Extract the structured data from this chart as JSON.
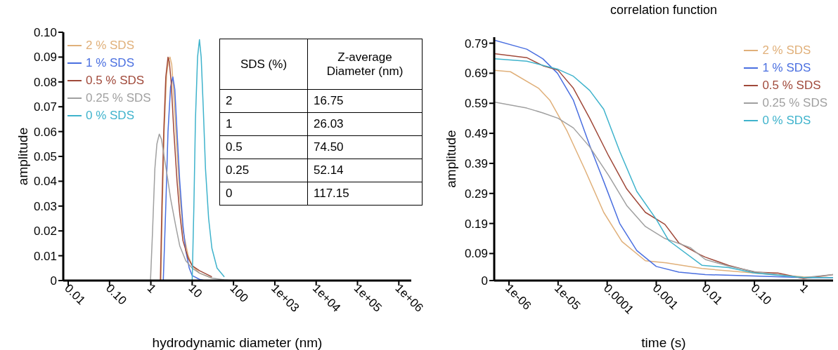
{
  "chart_data": [
    {
      "type": "line",
      "xlabel": "hydrodynamic diameter (nm)",
      "ylabel": "amplitude",
      "log": "x",
      "legend": "top left",
      "xlim": [
        0.0076,
        2000000
      ],
      "xticks": [
        0.01,
        {
          "value": 0.1,
          "label": "0.10"
        },
        1,
        10,
        100,
        {
          "value": 1000,
          "label": "1e+03"
        },
        {
          "value": 10000,
          "label": "1e+04"
        },
        {
          "value": 100000,
          "label": "1e+05"
        },
        {
          "value": 1000000,
          "label": "1e+06"
        }
      ],
      "ylim": [
        0,
        0.1
      ],
      "yticks": [
        0,
        0.01,
        0.02,
        0.03,
        0.04,
        0.05,
        0.06,
        0.07,
        0.08,
        0.09,
        {
          "value": 0.1,
          "label": "0.10"
        }
      ],
      "annotations": [
        "SDS (%)",
        "Z-average Diameter (nm)",
        "2",
        "16.75",
        "1",
        "26.03",
        "0.5",
        "74.50",
        "0.25",
        "52.14",
        "0",
        "117.15"
      ],
      "series": [
        {
          "name": "2 % SDS",
          "color": "#e0b07a",
          "x": [
            1.75,
            1.9,
            2.1,
            2.4,
            2.7,
            2.9,
            3.2,
            3.6,
            4.2,
            5,
            6,
            8,
            10,
            15,
            30
          ],
          "values": [
            0,
            0.03,
            0.06,
            0.083,
            0.089,
            0.09,
            0.087,
            0.075,
            0.055,
            0.035,
            0.02,
            0.01,
            0.006,
            0.003,
            0.001
          ]
        },
        {
          "name": "1 % SDS",
          "color": "#4a6fe0",
          "x": [
            2,
            2.3,
            2.6,
            3,
            3.4,
            3.8,
            4.3,
            5,
            6,
            7,
            8.5,
            10,
            15,
            20
          ],
          "values": [
            0,
            0.03,
            0.06,
            0.078,
            0.082,
            0.077,
            0.06,
            0.04,
            0.022,
            0.012,
            0.005,
            0.002,
            0.0005,
            0
          ]
        },
        {
          "name": "0.5 % SDS",
          "color": "#a0493a",
          "x": [
            1.7,
            1.85,
            2.05,
            2.3,
            2.6,
            2.8,
            3.1,
            3.6,
            4.3,
            5,
            6,
            8,
            10,
            15,
            30
          ],
          "values": [
            0,
            0.03,
            0.06,
            0.082,
            0.09,
            0.088,
            0.08,
            0.06,
            0.04,
            0.027,
            0.016,
            0.009,
            0.006,
            0.004,
            0.0015
          ]
        },
        {
          "name": "0.25 % SDS",
          "color": "#a0a0a0",
          "x": [
            0.98,
            1.1,
            1.25,
            1.4,
            1.6,
            1.8,
            2.1,
            2.5,
            3,
            4,
            5,
            7,
            10,
            15,
            30,
            60,
            100
          ],
          "values": [
            0,
            0.02,
            0.045,
            0.055,
            0.059,
            0.057,
            0.05,
            0.042,
            0.033,
            0.022,
            0.014,
            0.008,
            0.005,
            0.003,
            0.001,
            0.0003,
            0
          ]
        },
        {
          "name": "0 % SDS",
          "color": "#3fb3cc",
          "x": [
            10,
            11,
            12,
            13.5,
            15,
            16.5,
            18.5,
            21,
            25,
            30,
            40,
            60
          ],
          "values": [
            0,
            0.03,
            0.065,
            0.09,
            0.097,
            0.09,
            0.07,
            0.045,
            0.025,
            0.013,
            0.005,
            0.0015
          ]
        }
      ]
    },
    {
      "type": "line",
      "title": "correlation function",
      "xlabel": "time (s)",
      "ylabel": "amplitude",
      "log": "x",
      "legend": "top right",
      "xlim": [
        5e-07,
        4
      ],
      "xticks": [
        {
          "value": 1e-06,
          "label": "1e-06"
        },
        {
          "value": 1e-05,
          "label": "1e-05"
        },
        0.0001,
        0.001,
        0.01,
        {
          "value": 0.1,
          "label": "0.10"
        },
        1
      ],
      "ylim": [
        0,
        0.81
      ],
      "yticks": [
        0,
        0.09,
        0.19,
        0.29,
        0.39,
        0.49,
        0.59,
        0.69,
        0.79
      ],
      "series": [
        {
          "name": "2 % SDS",
          "color": "#e0b07a",
          "x": [
            5e-07,
            1.07e-06,
            4e-06,
            6.8e-06,
            1.5e-05,
            3.5e-05,
            8.5e-05,
            0.0002,
            0.0006,
            0.0016,
            0.0085,
            0.1,
            1,
            4
          ],
          "values": [
            0.7,
            0.695,
            0.64,
            0.6,
            0.5,
            0.37,
            0.227,
            0.13,
            0.066,
            0.059,
            0.04,
            0.025,
            0.012,
            0.01
          ]
        },
        {
          "name": "1 % SDS",
          "color": "#4a6fe0",
          "x": [
            5e-07,
            2.3e-06,
            4.9e-06,
            9.7e-06,
            2.05e-05,
            4.4e-05,
            8.5e-05,
            0.00018,
            0.0004,
            0.001,
            0.0029,
            0.01,
            0.1,
            1,
            4
          ],
          "values": [
            0.8,
            0.77,
            0.738,
            0.69,
            0.6,
            0.45,
            0.33,
            0.19,
            0.1,
            0.047,
            0.028,
            0.02,
            0.015,
            0.01,
            0.01
          ]
        },
        {
          "name": "0.5 % SDS",
          "color": "#a0493a",
          "x": [
            5e-07,
            2.3e-06,
            4.9e-06,
            1e-05,
            2.05e-05,
            4.4e-05,
            0.000107,
            0.00025,
            0.0006,
            0.0015,
            0.0029,
            0.0078,
            0.01,
            0.03,
            0.1,
            0.3,
            1,
            4
          ],
          "values": [
            0.755,
            0.742,
            0.715,
            0.7,
            0.64,
            0.54,
            0.415,
            0.305,
            0.227,
            0.187,
            0.125,
            0.086,
            0.078,
            0.05,
            0.028,
            0.025,
            0.007,
            0.02
          ]
        },
        {
          "name": "0.25 % SDS",
          "color": "#a0a0a0",
          "x": [
            5e-07,
            2.3e-06,
            4.9e-06,
            1e-05,
            2.05e-05,
            4.4e-05,
            0.000107,
            0.00025,
            0.0006,
            0.0015,
            0.0049,
            0.01,
            0.03,
            0.1,
            0.3,
            1,
            4
          ],
          "values": [
            0.594,
            0.574,
            0.558,
            0.54,
            0.508,
            0.445,
            0.35,
            0.25,
            0.18,
            0.14,
            0.11,
            0.07,
            0.048,
            0.03,
            0.02,
            0.01,
            0.02
          ]
        },
        {
          "name": "0 % SDS",
          "color": "#3fb3cc",
          "x": [
            5e-07,
            2.3e-06,
            1e-05,
            2.05e-05,
            4.4e-05,
            8.5e-05,
            0.00018,
            0.0004,
            0.001,
            0.0018,
            0.0085,
            0.03,
            0.1,
            1,
            4
          ],
          "values": [
            0.738,
            0.73,
            0.703,
            0.68,
            0.633,
            0.57,
            0.43,
            0.297,
            0.204,
            0.133,
            0.051,
            0.043,
            0.025,
            0.01,
            0.01
          ]
        }
      ]
    }
  ]
}
